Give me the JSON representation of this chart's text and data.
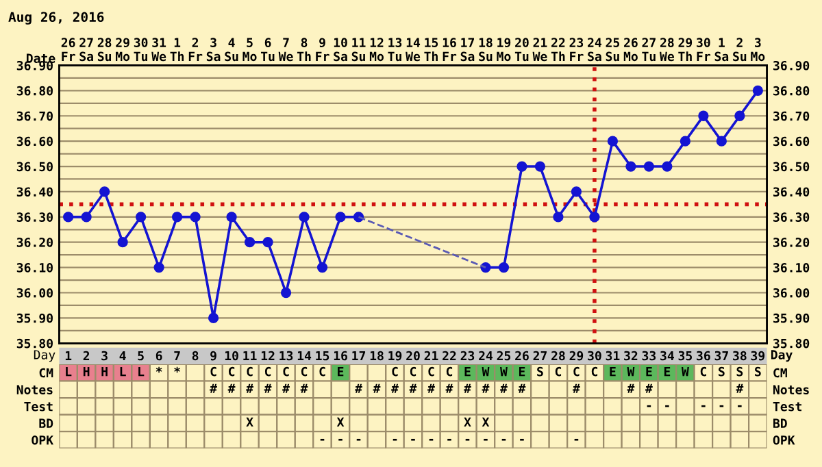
{
  "chart_data": [
    {
      "type": "line",
      "title": "Aug 26, 2016",
      "x2label": "Date",
      "xlabel": "Day",
      "marker": "circle",
      "line_style": "solid",
      "grid": true,
      "legend": false,
      "series": [
        {
          "color": "#1414d2",
          "x": [
            1,
            2,
            3,
            4,
            5,
            6,
            7,
            8,
            9,
            10,
            11,
            12,
            13,
            14,
            15,
            16,
            17,
            18,
            19,
            20,
            21,
            22,
            23,
            24,
            25,
            26,
            27,
            28,
            29,
            30,
            31,
            32,
            33,
            34,
            35,
            36,
            37,
            38,
            39
          ],
          "values": [
            36.3,
            36.3,
            36.4,
            36.2,
            36.3,
            36.1,
            36.3,
            36.3,
            35.9,
            36.3,
            36.2,
            36.2,
            36.0,
            36.3,
            36.1,
            36.3,
            36.3,
            null,
            null,
            null,
            null,
            null,
            null,
            36.1,
            36.1,
            36.5,
            36.5,
            36.3,
            36.4,
            36.3,
            36.6,
            36.5,
            36.5,
            36.5,
            36.6,
            36.7,
            36.6,
            36.7,
            36.8
          ]
        },
        {
          "color": "#5a5ab4",
          "type": "line",
          "line_style": "dashed",
          "marker": "none",
          "x": [
            17,
            24
          ],
          "values": [
            36.3,
            36.1
          ]
        }
      ],
      "ref_lines": [
        {
          "axis": "y",
          "value": 36.35,
          "color": "#d01010",
          "line_style": "dotted"
        },
        {
          "axis": "x",
          "value": 30,
          "color": "#d01010",
          "line_style": "dotted"
        }
      ],
      "xlim": [
        0.5,
        39.5
      ],
      "xticks": [
        1,
        2,
        3,
        4,
        5,
        6,
        7,
        8,
        9,
        10,
        11,
        12,
        13,
        14,
        15,
        16,
        17,
        18,
        19,
        20,
        21,
        22,
        23,
        24,
        25,
        26,
        27,
        28,
        29,
        30,
        31,
        32,
        33,
        34,
        35,
        36,
        37,
        38,
        39
      ],
      "x2lim": [
        "2016-08-25T12:00",
        "2016-10-03T12:00"
      ],
      "x2ticks": [
        {
          "value": "2016-08-26",
          "label": "26\nFr"
        },
        {
          "value": "2016-08-27",
          "label": "27\nSa"
        },
        {
          "value": "2016-08-28",
          "label": "28\nSu"
        },
        {
          "value": "2016-08-29",
          "label": "29\nMo"
        },
        {
          "value": "2016-08-30",
          "label": "30\nTu"
        },
        {
          "value": "2016-08-31",
          "label": "31\nWe"
        },
        {
          "value": "2016-09-01",
          "label": "1\nTh"
        },
        {
          "value": "2016-09-02",
          "label": "2\nFr"
        },
        {
          "value": "2016-09-03",
          "label": "3\nSa"
        },
        {
          "value": "2016-09-04",
          "label": "4\nSu"
        },
        {
          "value": "2016-09-05",
          "label": "5\nMo"
        },
        {
          "value": "2016-09-06",
          "label": "6\nTu"
        },
        {
          "value": "2016-09-07",
          "label": "7\nWe"
        },
        {
          "value": "2016-09-08",
          "label": "8\nTh"
        },
        {
          "value": "2016-09-09",
          "label": "9\nFr"
        },
        {
          "value": "2016-09-10",
          "label": "10\nSa"
        },
        {
          "value": "2016-09-11",
          "label": "11\nSu"
        },
        {
          "value": "2016-09-12",
          "label": "12\nMo"
        },
        {
          "value": "2016-09-13",
          "label": "13\nTu"
        },
        {
          "value": "2016-09-14",
          "label": "14\nWe"
        },
        {
          "value": "2016-09-15",
          "label": "15\nTh"
        },
        {
          "value": "2016-09-16",
          "label": "16\nFr"
        },
        {
          "value": "2016-09-17",
          "label": "17\nSa"
        },
        {
          "value": "2016-09-18",
          "label": "18\nSu"
        },
        {
          "value": "2016-09-19",
          "label": "19\nMo"
        },
        {
          "value": "2016-09-20",
          "label": "20\nTu"
        },
        {
          "value": "2016-09-21",
          "label": "21\nWe"
        },
        {
          "value": "2016-09-22",
          "label": "22\nTh"
        },
        {
          "value": "2016-09-23",
          "label": "23\nFr"
        },
        {
          "value": "2016-09-24",
          "label": "24\nSa"
        },
        {
          "value": "2016-09-25",
          "label": "25\nSu"
        },
        {
          "value": "2016-09-26",
          "label": "26\nMo"
        },
        {
          "value": "2016-09-27",
          "label": "27\nTu"
        },
        {
          "value": "2016-09-28",
          "label": "28\nWe"
        },
        {
          "value": "2016-09-29",
          "label": "29\nTh"
        },
        {
          "value": "2016-09-30",
          "label": "30\nFr"
        },
        {
          "value": "2016-10-01",
          "label": "1\nSa"
        },
        {
          "value": "2016-10-02",
          "label": "2\nSu"
        },
        {
          "value": "2016-10-03",
          "label": "3\nMo"
        }
      ],
      "ylim": [
        35.8,
        36.9
      ],
      "yticks": [
        {
          "value": 35.8,
          "label": "35.80"
        },
        {
          "value": 35.85,
          "label": null
        },
        {
          "value": 35.9,
          "label": "35.90"
        },
        {
          "value": 35.95,
          "label": null
        },
        {
          "value": 36.0,
          "label": "36.00"
        },
        {
          "value": 36.05,
          "label": null
        },
        {
          "value": 36.1,
          "label": "36.10"
        },
        {
          "value": 36.15,
          "label": null
        },
        {
          "value": 36.2,
          "label": "36.20"
        },
        {
          "value": 36.25,
          "label": null
        },
        {
          "value": 36.3,
          "label": "36.30"
        },
        {
          "value": 36.4,
          "label": "36.40"
        },
        {
          "value": 36.45,
          "label": null
        },
        {
          "value": 36.5,
          "label": "36.50"
        },
        {
          "value": 36.55,
          "label": null
        },
        {
          "value": 36.6,
          "label": "36.60"
        },
        {
          "value": 36.65,
          "label": null
        },
        {
          "value": 36.7,
          "label": "36.70"
        },
        {
          "value": 36.75,
          "label": null
        },
        {
          "value": 36.8,
          "label": "36.80"
        },
        {
          "value": 36.85,
          "label": null
        },
        {
          "value": 36.9,
          "label": "36.90"
        }
      ],
      "y2lim": [
        35.8,
        36.9
      ],
      "y2ticks": [
        {
          "value": 35.8,
          "label": "35.80"
        },
        {
          "value": 35.9,
          "label": "35.90"
        },
        {
          "value": 36.0,
          "label": "36.00"
        },
        {
          "value": 36.1,
          "label": "36.10"
        },
        {
          "value": 36.2,
          "label": "36.20"
        },
        {
          "value": 36.3,
          "label": "36.30"
        },
        {
          "value": 36.4,
          "label": "36.40"
        },
        {
          "value": 36.5,
          "label": "36.50"
        },
        {
          "value": 36.6,
          "label": "36.60"
        },
        {
          "value": 36.7,
          "label": "36.70"
        },
        {
          "value": 36.8,
          "label": "36.80"
        },
        {
          "value": 36.9,
          "label": "36.90"
        }
      ]
    },
    {
      "type": "other",
      "y_categories": [
        "CM",
        "Notes",
        "Test",
        "BD",
        "OPK"
      ],
      "y2_categories": [
        "CM",
        "Notes",
        "Test",
        "BD",
        "OPK"
      ],
      "cell_labels": [
        [
          "L",
          "H",
          "H",
          "L",
          "L",
          "*",
          "*",
          null,
          "C",
          "C",
          "C",
          "C",
          "C",
          "C",
          "C",
          "E",
          null,
          null,
          "C",
          "C",
          "C",
          "C",
          "E",
          "W",
          "W",
          "E",
          "S",
          "C",
          "C",
          "C",
          "E",
          "W",
          "E",
          "E",
          "W",
          "C",
          "S",
          "S",
          "S"
        ],
        [
          null,
          null,
          null,
          null,
          null,
          null,
          null,
          null,
          "#",
          "#",
          "#",
          "#",
          "#",
          "#",
          null,
          null,
          "#",
          "#",
          "#",
          "#",
          "#",
          "#",
          "#",
          "#",
          "#",
          "#",
          null,
          null,
          "#",
          null,
          null,
          "#",
          "#",
          null,
          null,
          null,
          null,
          "#",
          null
        ],
        [
          null,
          null,
          null,
          null,
          null,
          null,
          null,
          null,
          null,
          null,
          null,
          null,
          null,
          null,
          null,
          null,
          null,
          null,
          null,
          null,
          null,
          null,
          null,
          null,
          null,
          null,
          null,
          null,
          null,
          null,
          null,
          null,
          "-",
          "-",
          null,
          "-",
          "-",
          "-",
          null
        ],
        [
          null,
          null,
          null,
          null,
          null,
          null,
          null,
          null,
          null,
          null,
          "X",
          null,
          null,
          null,
          null,
          "X",
          null,
          null,
          null,
          null,
          null,
          null,
          "X",
          "X",
          null,
          null,
          null,
          null,
          null,
          null,
          null,
          null,
          null,
          null,
          null,
          null,
          null,
          null,
          null
        ],
        [
          null,
          null,
          null,
          null,
          null,
          null,
          null,
          null,
          null,
          null,
          null,
          null,
          null,
          null,
          "-",
          "-",
          "-",
          null,
          "-",
          "-",
          "-",
          "-",
          "-",
          "-",
          "-",
          "-",
          null,
          null,
          "-",
          null,
          null,
          null,
          null,
          null,
          null,
          null,
          null,
          null,
          null
        ]
      ],
      "colors": [
        [
          "#e8808e",
          "#e8808e",
          "#e8808e",
          "#e8808e",
          "#e8808e",
          null,
          null,
          null,
          null,
          null,
          null,
          null,
          null,
          null,
          null,
          "#5cb85c",
          null,
          null,
          null,
          null,
          null,
          null,
          "#5cb85c",
          "#5cb85c",
          "#5cb85c",
          "#5cb85c",
          null,
          null,
          null,
          null,
          "#5cb85c",
          "#5cb85c",
          "#5cb85c",
          "#5cb85c",
          "#5cb85c",
          null,
          null,
          null,
          null
        ],
        [
          null,
          null,
          null,
          null,
          null,
          null,
          null,
          null,
          null,
          null,
          null,
          null,
          null,
          null,
          null,
          null,
          null,
          null,
          null,
          null,
          null,
          null,
          null,
          null,
          null,
          null,
          null,
          null,
          null,
          null,
          null,
          null,
          null,
          null,
          null,
          null,
          null,
          null,
          null
        ],
        [
          null,
          null,
          null,
          null,
          null,
          null,
          null,
          null,
          null,
          null,
          null,
          null,
          null,
          null,
          null,
          null,
          null,
          null,
          null,
          null,
          null,
          null,
          null,
          null,
          null,
          null,
          null,
          null,
          null,
          null,
          null,
          null,
          null,
          null,
          null,
          null,
          null,
          null,
          null
        ],
        [
          null,
          null,
          null,
          null,
          null,
          null,
          null,
          null,
          null,
          null,
          null,
          null,
          null,
          null,
          null,
          null,
          null,
          null,
          null,
          null,
          null,
          null,
          null,
          null,
          null,
          null,
          null,
          null,
          null,
          null,
          null,
          null,
          null,
          null,
          null,
          null,
          null,
          null,
          null
        ],
        [
          null,
          null,
          null,
          null,
          null,
          null,
          null,
          null,
          null,
          null,
          null,
          null,
          null,
          null,
          null,
          null,
          null,
          null,
          null,
          null,
          null,
          null,
          null,
          null,
          null,
          null,
          null,
          null,
          null,
          null,
          null,
          null,
          null,
          null,
          null,
          null,
          null,
          null,
          null
        ]
      ]
    }
  ]
}
